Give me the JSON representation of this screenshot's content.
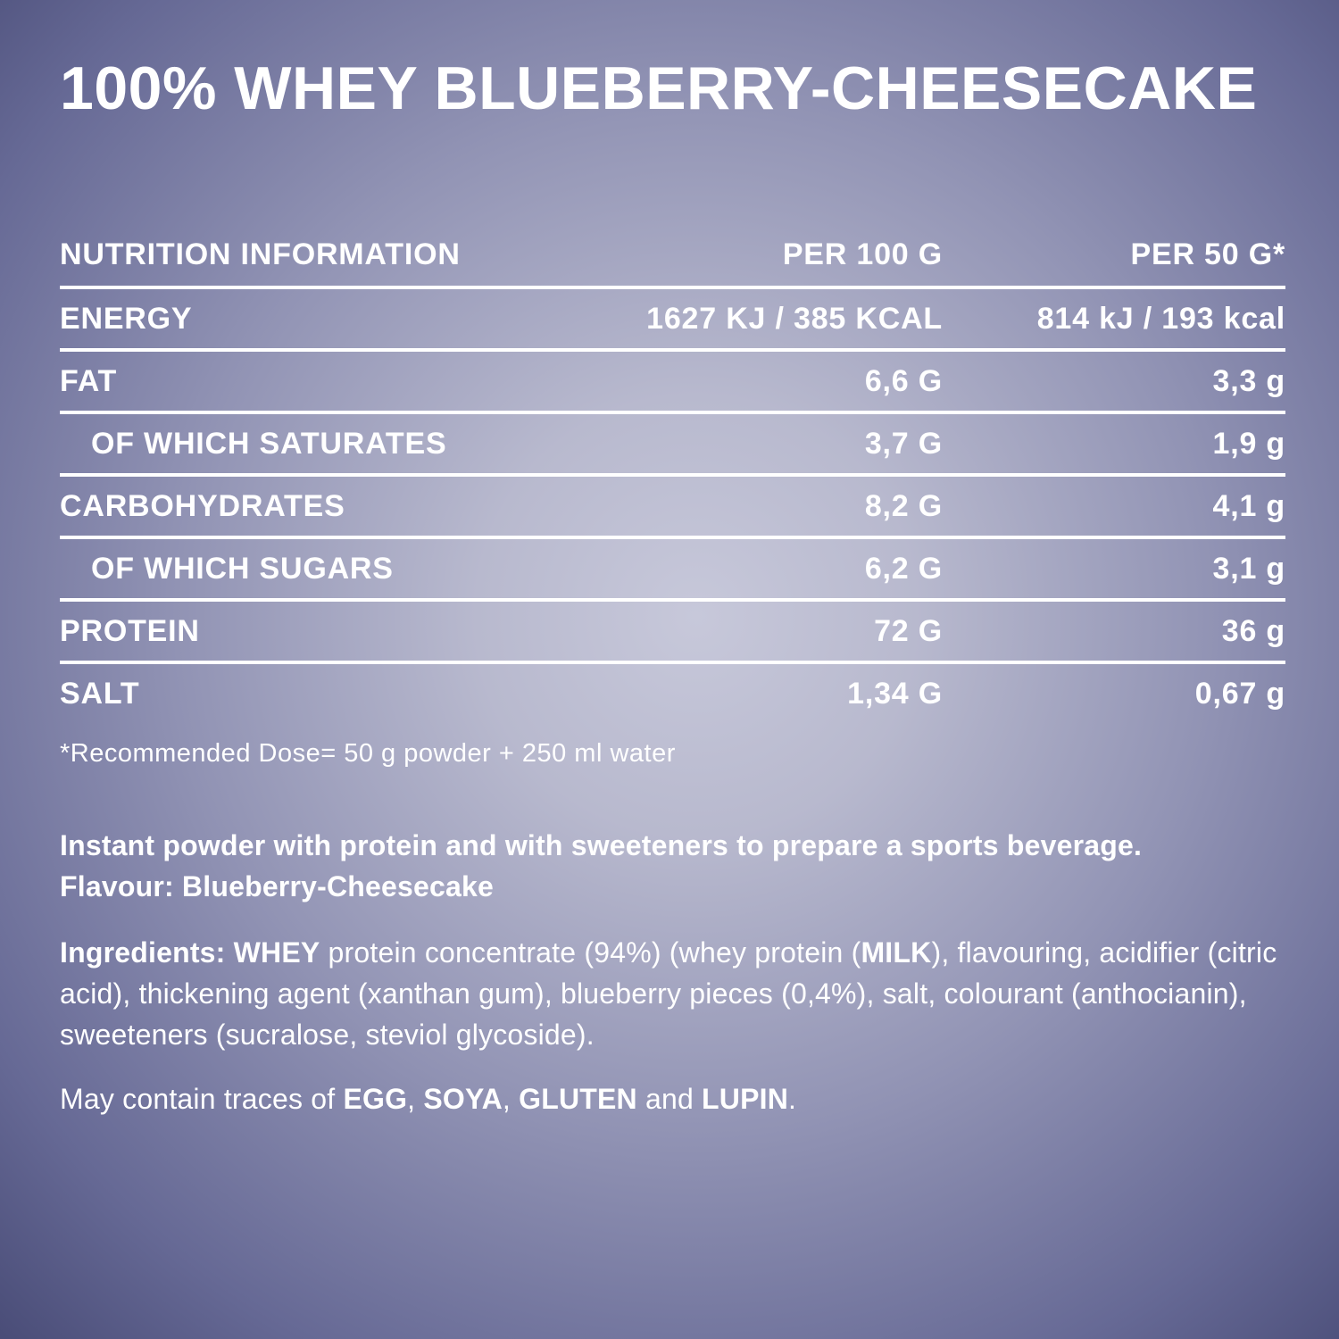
{
  "title": "100% WHEY BLUEBERRY-CHEESECAKE",
  "colors": {
    "text": "#ffffff",
    "background_center": "#c7c8da",
    "background_edge": "#4a4d78",
    "divider": "#ffffff"
  },
  "table": {
    "headers": [
      "NUTRITION INFORMATION",
      "PER 100 G",
      "PER 50 G*"
    ],
    "rows": [
      {
        "label": "ENERGY",
        "per100": "1627 KJ / 385 KCAL",
        "per50": "814 kJ / 193 kcal",
        "indent": false
      },
      {
        "label": "FAT",
        "per100": "6,6 G",
        "per50": "3,3 g",
        "indent": false
      },
      {
        "label": "OF WHICH SATURATES",
        "per100": "3,7 G",
        "per50": "1,9 g",
        "indent": true
      },
      {
        "label": "CARBOHYDRATES",
        "per100": "8,2 G",
        "per50": "4,1 g",
        "indent": false
      },
      {
        "label": "OF WHICH SUGARS",
        "per100": "6,2 G",
        "per50": "3,1 g",
        "indent": true
      },
      {
        "label": "PROTEIN",
        "per100": "72 G",
        "per50": "36 g",
        "indent": false
      },
      {
        "label": "SALT",
        "per100": "1,34 G",
        "per50": "0,67 g",
        "indent": false
      }
    ]
  },
  "footnote": "*Recommended Dose= 50 g powder + 250 ml water",
  "description": {
    "line1": "Instant powder with protein and with sweeteners to prepare a sports beverage.",
    "line2": "Flavour: Blueberry-Cheesecake"
  },
  "ingredients_segments": [
    {
      "text": "Ingredients: WHEY",
      "bold": true
    },
    {
      "text": " protein concentrate (94%) (whey protein (",
      "bold": false
    },
    {
      "text": "MILK",
      "bold": true
    },
    {
      "text": "), flavouring, acidifier (citric acid), thickening agent (xanthan gum), blueberry pieces (0,4%), salt, colourant (anthocianin), sweeteners (sucralose, steviol glycoside).",
      "bold": false
    }
  ],
  "traces_segments": [
    {
      "text": "May contain traces of ",
      "bold": false
    },
    {
      "text": "EGG",
      "bold": true
    },
    {
      "text": ", ",
      "bold": false
    },
    {
      "text": "SOYA",
      "bold": true
    },
    {
      "text": ", ",
      "bold": false
    },
    {
      "text": "GLUTEN",
      "bold": true
    },
    {
      "text": " and ",
      "bold": false
    },
    {
      "text": "LUPIN",
      "bold": true
    },
    {
      "text": ".",
      "bold": false
    }
  ]
}
